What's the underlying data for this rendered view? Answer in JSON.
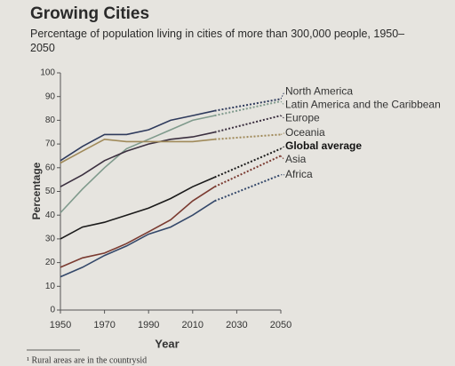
{
  "chart_data": {
    "type": "line",
    "title": "Growing Cities",
    "subtitle": "Percentage of population living in cities of more than 300,000 people, 1950–2050",
    "x_label": "Year",
    "y_label": "Percentage",
    "x": [
      1950,
      1960,
      1970,
      1980,
      1990,
      2000,
      2010,
      2020,
      2050
    ],
    "projected_from": 2020,
    "series": [
      {
        "name": "North America",
        "color": "#2e3a5c",
        "values": [
          63,
          69,
          74,
          74,
          76,
          80,
          82,
          84,
          89
        ]
      },
      {
        "name": "Latin America and the Caribbean",
        "color": "#7f9a8c",
        "values": [
          41,
          51,
          60,
          68,
          72,
          76,
          80,
          82,
          88
        ]
      },
      {
        "name": "Europe",
        "color": "#3b2f3f",
        "values": [
          52,
          57,
          63,
          67,
          70,
          72,
          73,
          75,
          82
        ]
      },
      {
        "name": "Oceania",
        "color": "#a08a5a",
        "values": [
          62,
          67,
          72,
          71,
          71,
          71,
          71,
          72,
          74
        ]
      },
      {
        "name": "Global average",
        "color": "#1a1a1a",
        "bold": true,
        "values": [
          30,
          35,
          37,
          40,
          43,
          47,
          52,
          56,
          68
        ]
      },
      {
        "name": "Asia",
        "color": "#7a3a30",
        "values": [
          18,
          22,
          24,
          28,
          33,
          38,
          46,
          52,
          65
        ]
      },
      {
        "name": "Africa",
        "color": "#34486a",
        "values": [
          14,
          18,
          23,
          27,
          32,
          35,
          40,
          46,
          57
        ]
      }
    ],
    "xlim": [
      1950,
      2050
    ],
    "xticks": [
      1950,
      1970,
      1990,
      2010,
      2030,
      2050
    ],
    "ylim": [
      0,
      100
    ],
    "yticks": [
      0,
      10,
      20,
      30,
      40,
      50,
      60,
      70,
      80,
      90,
      100
    ],
    "footnote": "¹ Rural areas are in the countrysid"
  }
}
